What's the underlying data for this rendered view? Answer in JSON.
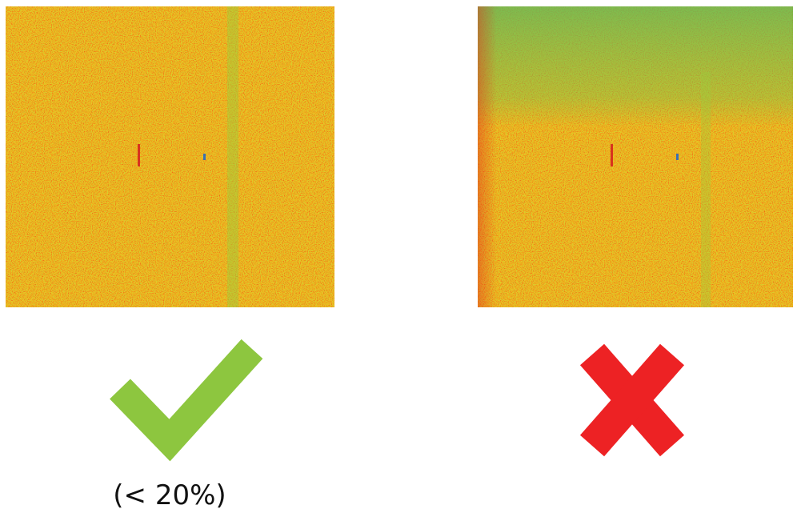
{
  "label": "(< 20%)"
}
